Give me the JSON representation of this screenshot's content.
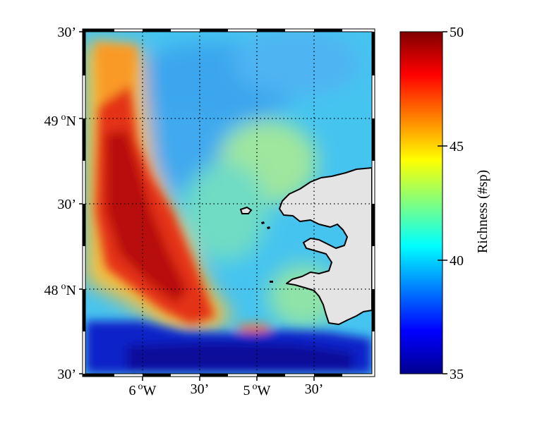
{
  "map": {
    "lat_labels": [
      {
        "deg": "",
        "min": "30’"
      },
      {
        "deg": "49 ",
        "sup": "o",
        "hemi": "N"
      },
      {
        "deg": "",
        "min": "30’"
      },
      {
        "deg": "48 ",
        "sup": "o",
        "hemi": "N"
      },
      {
        "deg": "",
        "min": "30’"
      }
    ],
    "lat_top": "30’",
    "lat_49": "49",
    "lat_mid": "30’",
    "lat_48": "48",
    "lat_bottom": "30’",
    "lon_6": "6",
    "lon_30a": "30’",
    "lon_5": "5",
    "lon_30b": "30’",
    "deg_sup": "o",
    "north": "N",
    "west": "W",
    "land_color": "#e4e4e4"
  },
  "colorbar": {
    "label": "Richness (#sp)",
    "ticks": [
      "50",
      "45",
      "40",
      "35"
    ],
    "min": 35,
    "max": 50,
    "colormap": "jet"
  }
}
